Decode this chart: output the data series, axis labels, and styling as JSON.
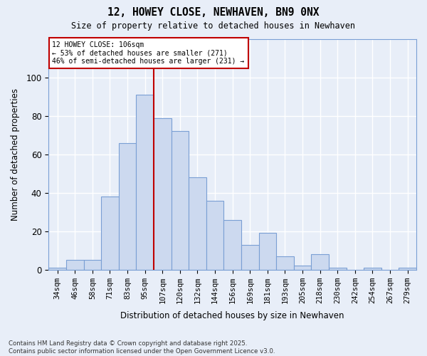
{
  "title": "12, HOWEY CLOSE, NEWHAVEN, BN9 0NX",
  "subtitle": "Size of property relative to detached houses in Newhaven",
  "xlabel": "Distribution of detached houses by size in Newhaven",
  "ylabel": "Number of detached properties",
  "categories": [
    "34sqm",
    "46sqm",
    "58sqm",
    "71sqm",
    "83sqm",
    "95sqm",
    "107sqm",
    "120sqm",
    "132sqm",
    "144sqm",
    "156sqm",
    "169sqm",
    "181sqm",
    "193sqm",
    "205sqm",
    "218sqm",
    "230sqm",
    "242sqm",
    "254sqm",
    "267sqm",
    "279sqm"
  ],
  "values": [
    1,
    5,
    5,
    38,
    66,
    91,
    79,
    72,
    48,
    36,
    26,
    13,
    19,
    7,
    2,
    8,
    1,
    0,
    1,
    0,
    1
  ],
  "bar_color": "#ccd9ef",
  "bar_edge_color": "#7a9fd4",
  "property_line_index": 6,
  "annotation_title": "12 HOWEY CLOSE: 106sqm",
  "annotation_line1": "← 53% of detached houses are smaller (271)",
  "annotation_line2": "46% of semi-detached houses are larger (231) →",
  "box_color": "#c00000",
  "footnote1": "Contains HM Land Registry data © Crown copyright and database right 2025.",
  "footnote2": "Contains public sector information licensed under the Open Government Licence v3.0.",
  "ylim": [
    0,
    120
  ],
  "yticks": [
    0,
    20,
    40,
    60,
    80,
    100
  ],
  "background_color": "#e8eef8",
  "grid_color": "#ffffff",
  "spine_color": "#7a9fd4"
}
